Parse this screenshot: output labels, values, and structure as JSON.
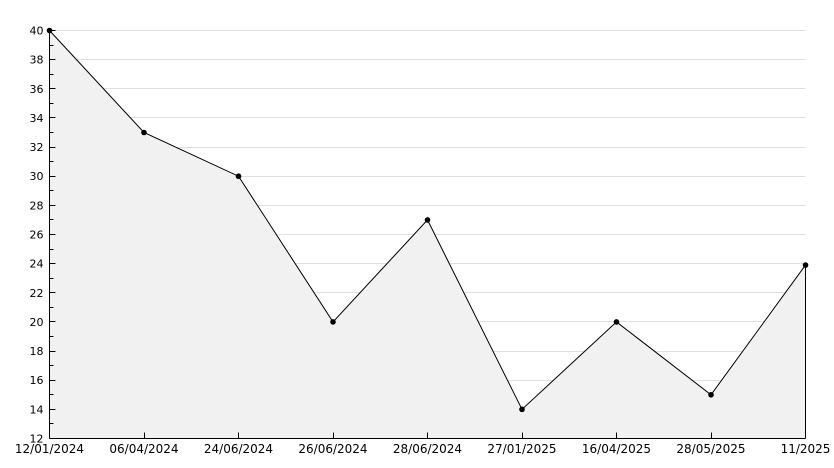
{
  "chart_data": {
    "type": "area",
    "title": "",
    "xlabel": "",
    "ylabel": "",
    "categories": [
      "12/01/2024",
      "06/04/2024",
      "24/06/2024",
      "26/06/2024",
      "28/06/2024",
      "27/01/2025",
      "16/04/2025",
      "28/05/2025",
      "11/2025"
    ],
    "values": [
      40,
      33,
      30,
      20,
      27,
      14,
      20,
      15,
      23.9
    ],
    "ylim": [
      12,
      40
    ],
    "ytick_step": 2,
    "ytick_minor_step": 1,
    "ytick_labels": [
      "40",
      "38",
      "36",
      "34",
      "32",
      "30",
      "28",
      "26",
      "24",
      "22",
      "20",
      "18",
      "16",
      "14",
      "12"
    ],
    "grid": "horizontal-major-only",
    "legend": "none",
    "marker": "filled-dot",
    "colors": {
      "background": "#ffffff",
      "line": "#000000",
      "marker": "#000000",
      "area_fill": "#f1f1f1",
      "grid": "#e0e0e0",
      "axis": "#000000",
      "text": "#000000"
    }
  }
}
